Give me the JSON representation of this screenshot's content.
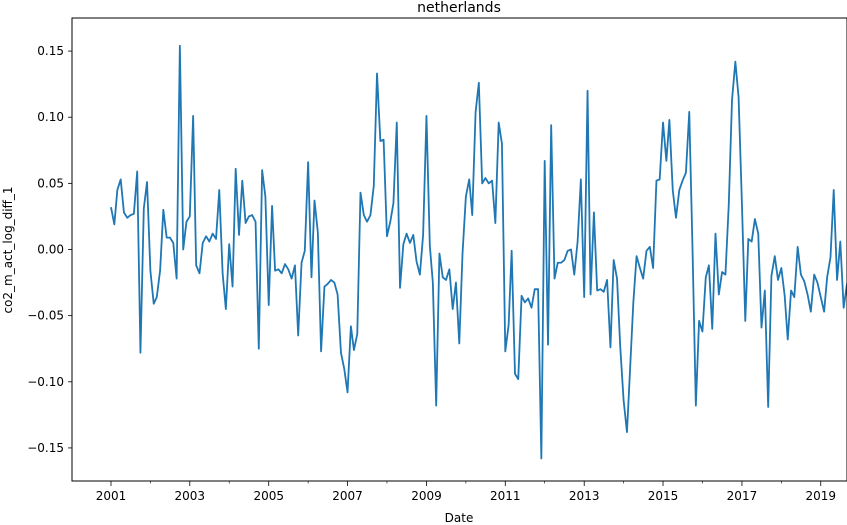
{
  "chart_data": {
    "type": "line",
    "title": "netherlands",
    "xlabel": "Date",
    "ylabel": "co2_m_act_log_diff_1",
    "x_range": [
      "2000-01-06",
      "2019-09-01"
    ],
    "ylim": [
      -0.175,
      0.175
    ],
    "grid": false,
    "legend": "none",
    "line_color": "#1f77b4",
    "x_ticks": [
      "2001",
      "2003",
      "2005",
      "2007",
      "2009",
      "2011",
      "2013",
      "2015",
      "2017",
      "2019"
    ],
    "y_ticks": [
      "0.15",
      "0.10",
      "0.05",
      "0.00",
      "−0.05",
      "−0.10",
      "−0.15"
    ],
    "y_tick_values": [
      0.15,
      0.1,
      0.05,
      0.0,
      -0.05,
      -0.1,
      -0.15
    ],
    "series": [
      {
        "start": "2001-01",
        "frequency": "monthly",
        "values": [
          0.032,
          0.019,
          0.045,
          0.053,
          0.028,
          0.024,
          0.026,
          0.027,
          0.059,
          -0.078,
          0.031,
          0.051,
          -0.016,
          -0.041,
          -0.036,
          -0.016,
          0.03,
          0.009,
          0.009,
          0.005,
          -0.022,
          0.154,
          0.0,
          0.021,
          0.025,
          0.101,
          -0.012,
          -0.018,
          0.005,
          0.01,
          0.006,
          0.012,
          0.008,
          0.045,
          -0.018,
          -0.045,
          0.004,
          -0.028,
          0.061,
          0.011,
          0.052,
          0.02,
          0.025,
          0.026,
          0.021,
          -0.075,
          0.06,
          0.04,
          -0.042,
          0.033,
          -0.016,
          -0.015,
          -0.018,
          -0.011,
          -0.015,
          -0.022,
          -0.012,
          -0.065,
          -0.01,
          -0.001,
          0.066,
          -0.021,
          0.037,
          0.013,
          -0.077,
          -0.028,
          -0.026,
          -0.023,
          -0.025,
          -0.034,
          -0.078,
          -0.09,
          -0.108,
          -0.058,
          -0.076,
          -0.064,
          0.043,
          0.026,
          0.021,
          0.026,
          0.048,
          0.133,
          0.082,
          0.083,
          0.01,
          0.021,
          0.035,
          0.096,
          -0.029,
          0.004,
          0.012,
          0.005,
          0.011,
          -0.009,
          -0.019,
          0.011,
          0.101,
          0.003,
          -0.025,
          -0.118,
          -0.003,
          -0.021,
          -0.023,
          -0.015,
          -0.045,
          -0.025,
          -0.071,
          -0.003,
          0.04,
          0.053,
          0.026,
          0.104,
          0.126,
          0.05,
          0.054,
          0.05,
          0.052,
          0.02,
          0.096,
          0.08,
          -0.077,
          -0.057,
          -0.001,
          -0.094,
          -0.098,
          -0.035,
          -0.04,
          -0.037,
          -0.044,
          -0.03,
          -0.03,
          -0.158,
          0.067,
          -0.072,
          0.094,
          -0.022,
          -0.01,
          -0.01,
          -0.008,
          -0.001,
          0.0,
          -0.019,
          0.006,
          0.053,
          -0.036,
          0.12,
          -0.034,
          0.028,
          -0.031,
          -0.03,
          -0.032,
          -0.023,
          -0.074,
          -0.008,
          -0.022,
          -0.074,
          -0.114,
          -0.138,
          -0.092,
          -0.04,
          -0.005,
          -0.014,
          -0.022,
          -0.001,
          0.002,
          -0.014,
          0.052,
          0.053,
          0.096,
          0.067,
          0.098,
          0.045,
          0.024,
          0.045,
          0.052,
          0.058,
          0.104,
          0.001,
          -0.118,
          -0.054,
          -0.062,
          -0.021,
          -0.012,
          -0.06,
          0.012,
          -0.034,
          -0.017,
          -0.019,
          0.034,
          0.113,
          0.142,
          0.115,
          0.034,
          -0.054,
          0.008,
          0.006,
          0.023,
          0.012,
          -0.059,
          -0.031,
          -0.119,
          -0.02,
          -0.005,
          -0.023,
          -0.014,
          -0.035,
          -0.068,
          -0.031,
          -0.036,
          0.002,
          -0.019,
          -0.024,
          -0.034,
          -0.047,
          -0.019,
          -0.025,
          -0.036,
          -0.047,
          -0.021,
          -0.006,
          0.045,
          -0.023,
          0.006,
          -0.044,
          -0.026,
          -0.027
        ]
      }
    ]
  }
}
